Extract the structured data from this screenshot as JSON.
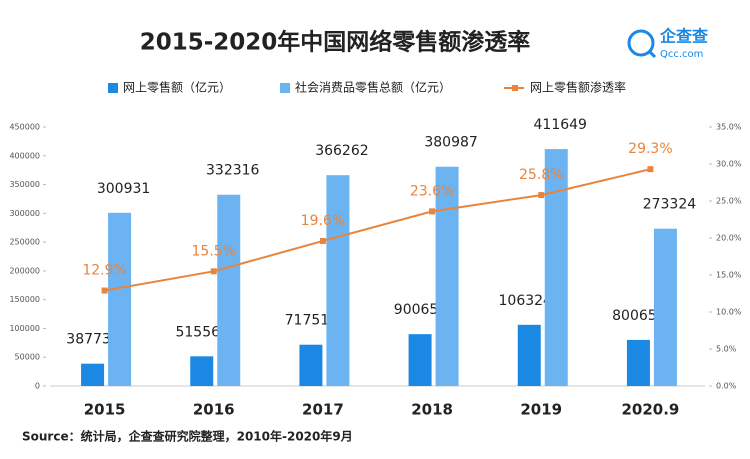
{
  "chart_data": {
    "type": "bar",
    "title": "2015-2020年中国网络零售额渗透率",
    "brand": "企查查",
    "brand_url": "Qcc.com",
    "source": "Source：统计局，企查查研究院整理，2010年-2020年9月",
    "categories": [
      "2015",
      "2016",
      "2017",
      "2018",
      "2019",
      "2020.9"
    ],
    "series": [
      {
        "name": "网上零售额（亿元）",
        "type": "bar",
        "color": "#1b88e3",
        "values": [
          38773,
          51556,
          71751,
          90065,
          106324,
          80065
        ]
      },
      {
        "name": "社会消费品零售总额（亿元）",
        "type": "bar",
        "color": "#6cb3f2",
        "values": [
          300931,
          332316,
          366262,
          380987,
          411649,
          273324
        ]
      },
      {
        "name": "网上零售额渗透率",
        "type": "line",
        "axis": "y2",
        "color": "#e9843c",
        "values": [
          12.9,
          15.5,
          19.6,
          23.6,
          25.8,
          29.3
        ],
        "value_labels": [
          "12.9%",
          "15.5%",
          "19.6%",
          "23.6%",
          "25.8%",
          "29.3%"
        ]
      }
    ],
    "ylim": [
      0,
      450000
    ],
    "yticks": [
      0,
      50000,
      100000,
      150000,
      200000,
      250000,
      300000,
      350000,
      400000,
      450000
    ],
    "y2lim": [
      0,
      35
    ],
    "y2ticks": [
      {
        "value": 0,
        "label": "0.0%"
      },
      {
        "value": 5,
        "label": "5.0%"
      },
      {
        "value": 10,
        "label": "10.0%"
      },
      {
        "value": 15,
        "label": "15.0%"
      },
      {
        "value": 20,
        "label": "20.0%"
      },
      {
        "value": 25,
        "label": "25.0%"
      },
      {
        "value": 30,
        "label": "30.0%"
      },
      {
        "value": 35,
        "label": "35.0%"
      }
    ],
    "grid": false
  }
}
